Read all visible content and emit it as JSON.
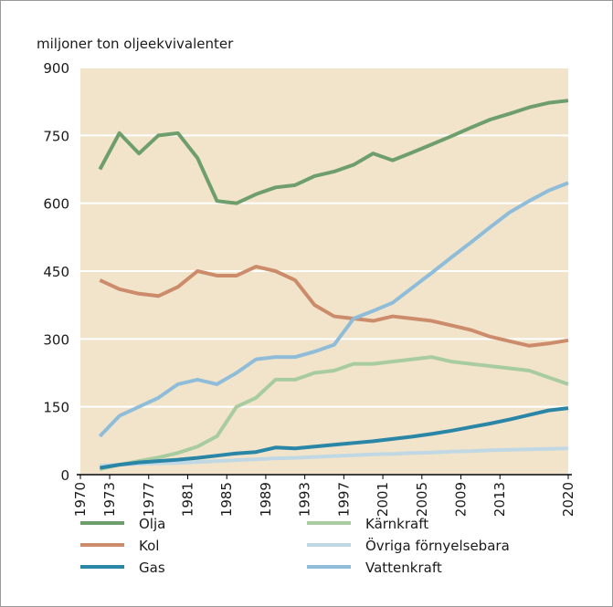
{
  "chart_data": {
    "type": "line",
    "y_label": "miljoner ton oljeekvivalenter",
    "x": [
      1972,
      1974,
      1976,
      1978,
      1980,
      1982,
      1984,
      1986,
      1988,
      1990,
      1992,
      1994,
      1996,
      1998,
      2000,
      2002,
      2004,
      2006,
      2008,
      2010,
      2012,
      2014,
      2016,
      2018,
      2020
    ],
    "xlim": [
      1970,
      2020
    ],
    "xticks": [
      1970,
      1973,
      1977,
      1981,
      1985,
      1989,
      1993,
      1997,
      2001,
      2005,
      2009,
      2013,
      2020
    ],
    "ylim": [
      0,
      900
    ],
    "yticks": [
      0,
      150,
      300,
      450,
      600,
      750,
      900
    ],
    "grid": true,
    "series": [
      {
        "name": "Olja",
        "color": "#6e9e6c",
        "values": [
          675,
          755,
          710,
          750,
          755,
          700,
          605,
          600,
          620,
          635,
          640,
          660,
          670,
          685,
          710,
          695,
          712,
          730,
          748,
          767,
          785,
          798,
          812,
          822,
          827
        ]
      },
      {
        "name": "Kärnkraft",
        "color": "#a8cca0",
        "values": [
          12,
          22,
          30,
          38,
          48,
          62,
          85,
          150,
          170,
          210,
          210,
          225,
          230,
          245,
          245,
          250,
          255,
          260,
          250,
          245,
          240,
          235,
          230,
          215,
          200
        ]
      },
      {
        "name": "Kol",
        "color": "#cc8c6c",
        "values": [
          430,
          410,
          400,
          395,
          415,
          450,
          440,
          440,
          460,
          450,
          430,
          375,
          350,
          345,
          340,
          350,
          345,
          340,
          330,
          320,
          305,
          295,
          285,
          290,
          297
        ]
      },
      {
        "name": "Övriga förnyelsebara",
        "color": "#c0d8e4",
        "values": [
          20,
          22,
          24,
          25,
          26,
          28,
          30,
          32,
          34,
          36,
          37,
          39,
          41,
          43,
          45,
          46,
          48,
          49,
          51,
          52,
          54,
          55,
          56,
          57,
          58
        ]
      },
      {
        "name": "Gas",
        "color": "#2a86a6",
        "values": [
          15,
          22,
          27,
          30,
          33,
          37,
          42,
          47,
          50,
          60,
          58,
          62,
          66,
          70,
          74,
          79,
          84,
          90,
          97,
          105,
          113,
          122,
          132,
          142,
          147
        ]
      },
      {
        "name": "Vattenkraft",
        "color": "#8fbcd8",
        "values": [
          85,
          130,
          150,
          170,
          200,
          210,
          200,
          225,
          255,
          260,
          260,
          272,
          287,
          345,
          362,
          380,
          413,
          446,
          480,
          513,
          547,
          580,
          605,
          628,
          645
        ]
      }
    ]
  }
}
